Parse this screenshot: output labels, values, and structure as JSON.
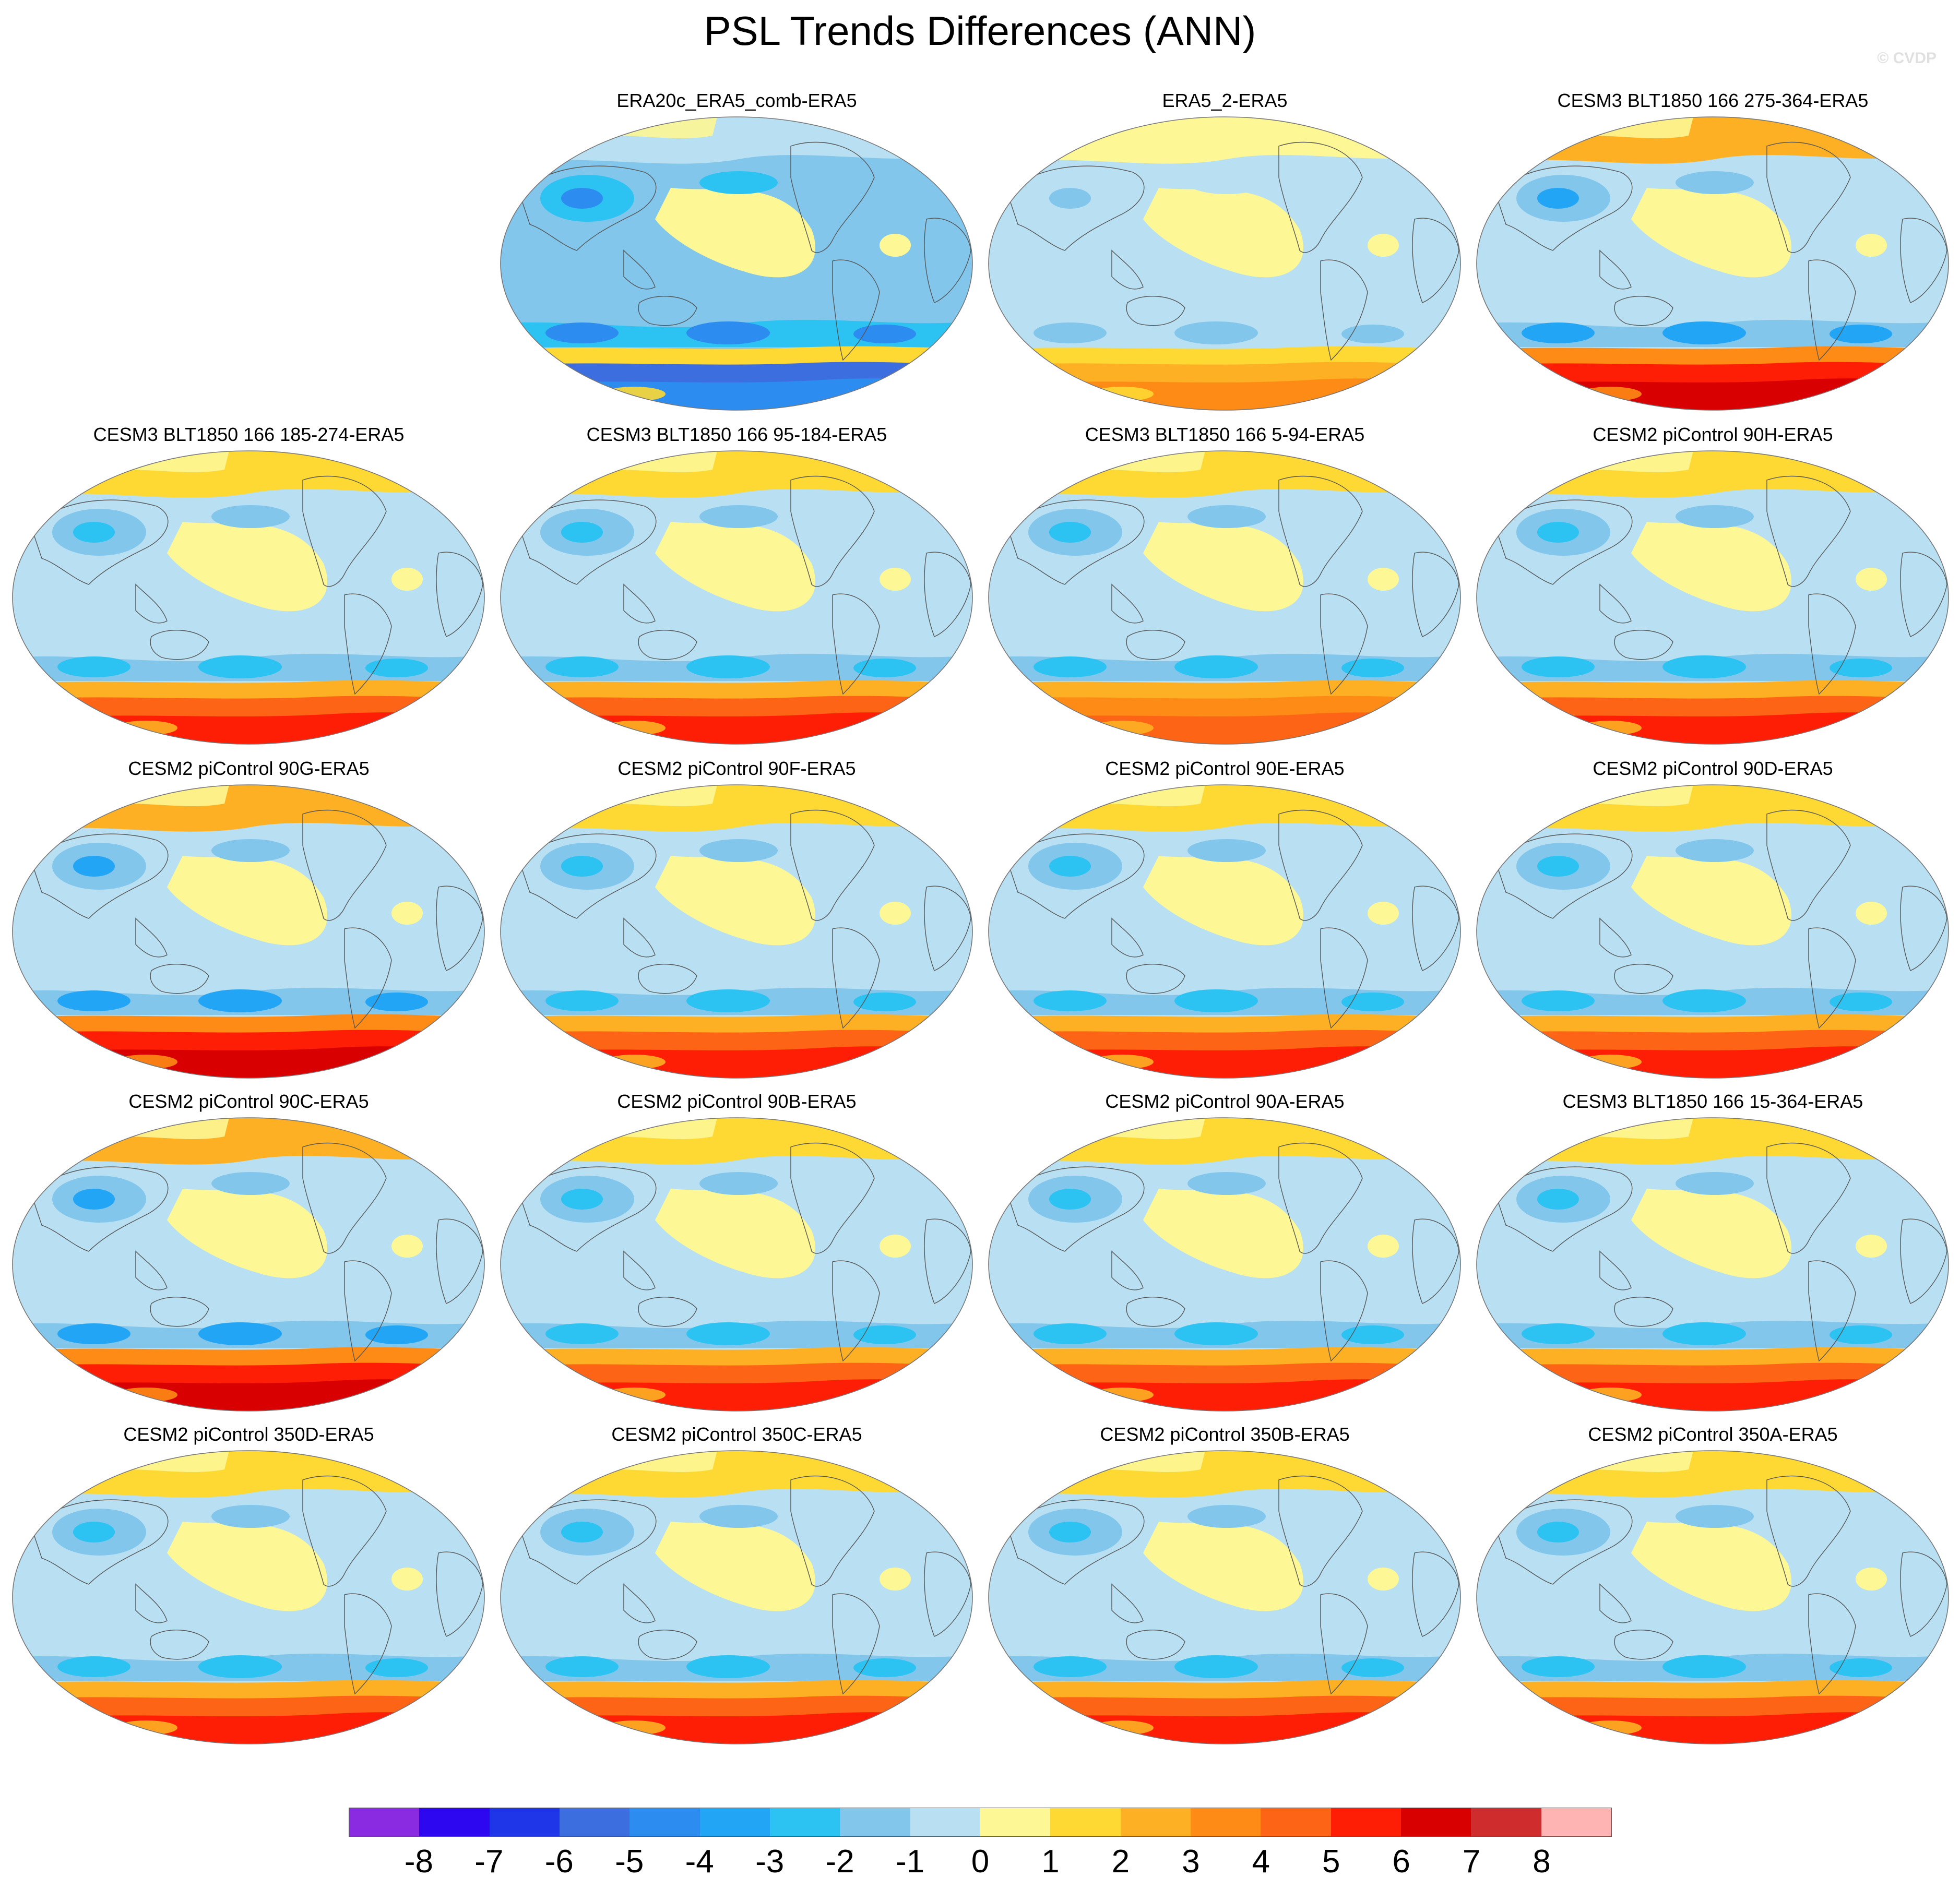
{
  "title": "PSL Trends Differences (ANN)",
  "watermark": "© CVDP",
  "panels": [
    {
      "title": "ERA20c_ERA5_comb-ERA5",
      "style": "era20c"
    },
    {
      "title": "ERA5_2-ERA5",
      "style": "era5_2"
    },
    {
      "title": "CESM3 BLT1850 166 275-364-ERA5",
      "style": "model_strong"
    },
    {
      "title": "CESM3 BLT1850 166 185-274-ERA5",
      "style": "model"
    },
    {
      "title": "CESM3 BLT1850 166 95-184-ERA5",
      "style": "model"
    },
    {
      "title": "CESM3 BLT1850 166 5-94-ERA5",
      "style": "model_weak"
    },
    {
      "title": "CESM2 piControl 90H-ERA5",
      "style": "model"
    },
    {
      "title": "CESM2 piControl 90G-ERA5",
      "style": "model_strong"
    },
    {
      "title": "CESM2 piControl 90F-ERA5",
      "style": "model"
    },
    {
      "title": "CESM2 piControl 90E-ERA5",
      "style": "model"
    },
    {
      "title": "CESM2 piControl 90D-ERA5",
      "style": "model"
    },
    {
      "title": "CESM2 piControl 90C-ERA5",
      "style": "model_strong"
    },
    {
      "title": "CESM2 piControl 90B-ERA5",
      "style": "model"
    },
    {
      "title": "CESM2 piControl 90A-ERA5",
      "style": "model"
    },
    {
      "title": "CESM3 BLT1850 166 15-364-ERA5",
      "style": "model"
    },
    {
      "title": "CESM2 piControl 350D-ERA5",
      "style": "model"
    },
    {
      "title": "CESM2 piControl 350C-ERA5",
      "style": "model"
    },
    {
      "title": "CESM2 piControl 350B-ERA5",
      "style": "model"
    },
    {
      "title": "CESM2 piControl 350A-ERA5",
      "style": "model"
    }
  ],
  "colorbar": {
    "colors": [
      "#8a2be2",
      "#2d07f0",
      "#1e35e8",
      "#3c6ee0",
      "#2d8cf0",
      "#23a5f5",
      "#2cc3f2",
      "#82c6ec",
      "#b8e0f2",
      "#fdf795",
      "#fed833",
      "#fdb023",
      "#fe8b16",
      "#fe6415",
      "#fe1e06",
      "#d80000",
      "#cf2d2d",
      "#ffb4b4"
    ],
    "labels": [
      "-8",
      "-7",
      "-6",
      "-5",
      "-4",
      "-3",
      "-2",
      "-1",
      "0",
      "1",
      "2",
      "3",
      "4",
      "5",
      "6",
      "7",
      "8"
    ]
  }
}
